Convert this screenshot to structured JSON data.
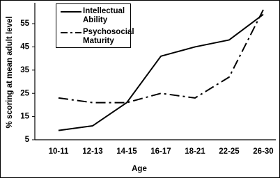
{
  "chart_data": {
    "type": "line",
    "x_label": "Age",
    "y_label": "% scoring at mean adult level",
    "categories": [
      "10-11",
      "12-13",
      "14-15",
      "16-17",
      "18-21",
      "22-25",
      "26-30"
    ],
    "series": [
      {
        "name": "Intellectual Ability",
        "color": "#000000",
        "dash": "solid",
        "values": [
          9,
          11,
          21,
          41,
          45,
          48,
          59
        ]
      },
      {
        "name": "Psychosocial Maturity",
        "color": "#000000",
        "dash": "dashdot",
        "values": [
          23,
          21,
          21,
          25,
          23,
          32,
          61
        ]
      }
    ],
    "ylim": [
      5,
      64
    ],
    "yticks": [
      5,
      15,
      25,
      35,
      45,
      55
    ],
    "grid": false,
    "legend": "upper left"
  }
}
